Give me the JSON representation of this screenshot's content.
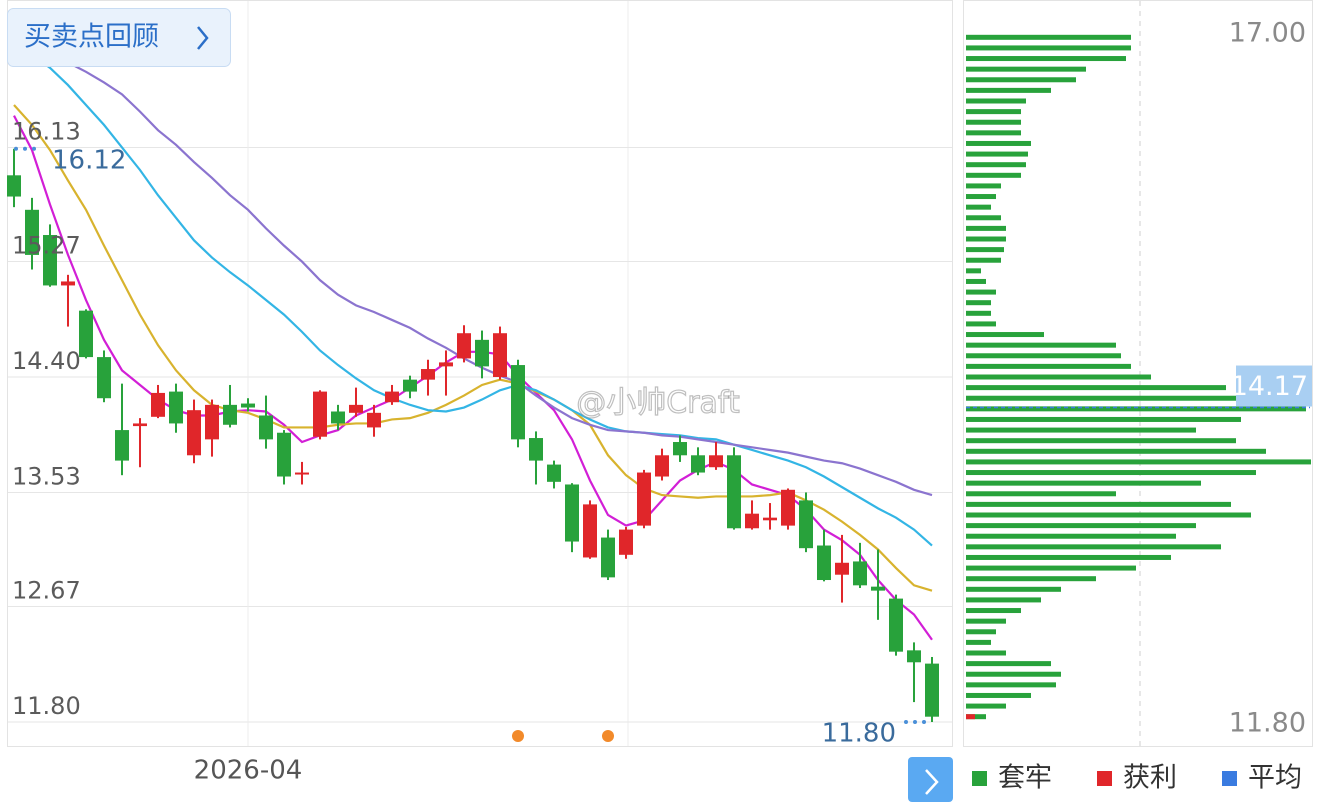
{
  "ui": {
    "button": "买卖点回顾",
    "watermark": "@小帅Craft"
  },
  "chart_data": [
    {
      "type": "candlestick",
      "categories": [
        null,
        null,
        null,
        null,
        null,
        null,
        null,
        null,
        null,
        null,
        null,
        null,
        null,
        "2026-04",
        null,
        null,
        null,
        null,
        null,
        null,
        null,
        null,
        null,
        null,
        null,
        null,
        null,
        null,
        null,
        null,
        null,
        null,
        null,
        null,
        null,
        null,
        null,
        null,
        null,
        null,
        null,
        null,
        null,
        null,
        null,
        null,
        null,
        null,
        null,
        null,
        null,
        null
      ],
      "open": [
        15.92,
        15.66,
        15.47,
        15.09,
        14.9,
        14.55,
        14,
        14.03,
        14.1,
        14.29,
        13.81,
        13.93,
        14.19,
        14.2,
        14.11,
        13.98,
        13.67,
        13.95,
        14.14,
        14.13,
        14.02,
        14.21,
        14.38,
        14.38,
        14.48,
        14.54,
        14.68,
        14.4,
        14.49,
        13.94,
        13.74,
        13.59,
        13.04,
        13.19,
        13.06,
        13.28,
        13.65,
        13.91,
        13.81,
        13.72,
        13.81,
        13.26,
        13.32,
        13.28,
        13.47,
        13.13,
        12.91,
        13.01,
        12.82,
        12.73,
        12.34,
        12.24
      ],
      "high": [
        16.12,
        15.75,
        15.55,
        15.17,
        14.91,
        14.6,
        14.35,
        14.09,
        14.34,
        14.35,
        14.23,
        14.23,
        14.34,
        14.24,
        14.26,
        14,
        13.76,
        14.3,
        14.19,
        14.32,
        14.19,
        14.34,
        14.41,
        14.53,
        14.6,
        14.79,
        14.75,
        14.78,
        14.53,
        13.99,
        13.77,
        13.6,
        13.47,
        13.25,
        13.27,
        13.7,
        13.86,
        13.96,
        13.87,
        13.91,
        13.87,
        13.47,
        13.45,
        13.56,
        13.53,
        13.25,
        13.21,
        13.15,
        13.1,
        12.76,
        12.4,
        12.29
      ],
      "low": [
        15.68,
        15.21,
        15.08,
        14.78,
        14.54,
        14.21,
        13.66,
        13.72,
        14.09,
        13.98,
        13.75,
        13.8,
        14.02,
        14.14,
        13.86,
        13.59,
        13.59,
        13.93,
        14,
        14.1,
        13.95,
        14.19,
        14.24,
        14.26,
        14.26,
        14.51,
        14.39,
        14.38,
        13.87,
        13.59,
        13.56,
        13.08,
        13.03,
        12.87,
        13.03,
        13.26,
        13.62,
        13.76,
        13.66,
        13.7,
        13.25,
        13.25,
        13.25,
        13.25,
        13.08,
        12.86,
        12.7,
        12.81,
        12.57,
        12.3,
        11.95,
        11.8
      ],
      "close": [
        15.76,
        15.32,
        15.09,
        15.12,
        14.55,
        14.24,
        13.77,
        14.05,
        14.28,
        14.05,
        14.15,
        14.19,
        14.04,
        14.17,
        13.93,
        13.65,
        13.68,
        14.29,
        14.05,
        14.19,
        14.13,
        14.29,
        14.29,
        14.46,
        14.51,
        14.73,
        14.48,
        14.73,
        13.93,
        13.77,
        13.61,
        13.16,
        13.44,
        12.89,
        13.25,
        13.68,
        13.81,
        13.81,
        13.68,
        13.81,
        13.26,
        13.37,
        13.34,
        13.55,
        13.11,
        12.87,
        13,
        12.83,
        12.79,
        12.33,
        12.25,
        11.84
      ],
      "up_color": "#e0262a",
      "down_color": "#28a23b",
      "lines": [
        {
          "color": "#d21fd6",
          "values": [
            16.37,
            16.11,
            15.7,
            15.32,
            14.98,
            14.68,
            14.45,
            14.34,
            14.23,
            14.15,
            14.11,
            14.11,
            14.14,
            14.15,
            14.14,
            14.04,
            13.91,
            13.96,
            14,
            14.11,
            14.17,
            14.23,
            14.32,
            14.41,
            14.51,
            14.59,
            14.59,
            14.57,
            14.41,
            14.28,
            14.15,
            13.93,
            13.62,
            13.36,
            13.28,
            13.32,
            13.47,
            13.62,
            13.7,
            13.76,
            13.7,
            13.59,
            13.55,
            13.51,
            13.4,
            13.25,
            13.17,
            13.06,
            12.87,
            12.72,
            12.61,
            12.42
          ]
        },
        {
          "color": "#d8b32e",
          "values": [
            16.45,
            16.3,
            16.11,
            15.88,
            15.66,
            15.39,
            15.13,
            14.87,
            14.64,
            14.45,
            14.3,
            14.19,
            14.15,
            14.13,
            14.08,
            14.02,
            14.02,
            14.02,
            14.04,
            14.05,
            14.05,
            14.08,
            14.09,
            14.13,
            14.19,
            14.26,
            14.34,
            14.38,
            14.35,
            14.29,
            14.23,
            14.15,
            14.04,
            13.81,
            13.66,
            13.56,
            13.51,
            13.5,
            13.49,
            13.5,
            13.5,
            13.5,
            13.51,
            13.53,
            13.47,
            13.4,
            13.31,
            13.21,
            13.1,
            12.96,
            12.83,
            12.79
          ]
        },
        {
          "color": "#33b5e5",
          "values": [
            16.9,
            16.83,
            16.73,
            16.6,
            16.45,
            16.3,
            16.13,
            15.96,
            15.77,
            15.6,
            15.43,
            15.3,
            15.19,
            15.09,
            14.98,
            14.87,
            14.74,
            14.6,
            14.49,
            14.39,
            14.3,
            14.24,
            14.19,
            14.15,
            14.14,
            14.17,
            14.23,
            14.3,
            14.34,
            14.3,
            14.23,
            14.15,
            14.08,
            14.02,
            13.99,
            13.98,
            13.97,
            13.96,
            13.94,
            13.93,
            13.89,
            13.85,
            13.81,
            13.77,
            13.72,
            13.65,
            13.57,
            13.49,
            13.41,
            13.34,
            13.25,
            13.13
          ]
        },
        {
          "color": "#8b74cf",
          "values": [
            16.95,
            16.9,
            16.85,
            16.77,
            16.7,
            16.62,
            16.53,
            16.4,
            16.26,
            16.15,
            16.02,
            15.9,
            15.77,
            15.66,
            15.52,
            15.39,
            15.27,
            15.13,
            15.02,
            14.94,
            14.89,
            14.83,
            14.77,
            14.69,
            14.62,
            14.54,
            14.47,
            14.41,
            14.36,
            14.26,
            14.17,
            14.09,
            14.04,
            14,
            13.99,
            13.98,
            13.96,
            13.95,
            13.93,
            13.91,
            13.89,
            13.87,
            13.85,
            13.83,
            13.8,
            13.77,
            13.75,
            13.71,
            13.66,
            13.61,
            13.55,
            13.51
          ]
        }
      ],
      "annotations": {
        "high": "16.12",
        "low": "11.80"
      },
      "ylim": [
        11.8,
        17
      ],
      "yticks": [
        16.13,
        15.27,
        {
          "value": 14.4,
          "label": "14.40"
        },
        13.53,
        12.67,
        {
          "value": 11.8,
          "label": "11.80"
        }
      ],
      "grid": true
    },
    {
      "type": "bar",
      "orientation": "horizontal",
      "series": [
        {
          "name": "套牢",
          "color": "#28a23b",
          "y": [
            16.96,
            16.88,
            16.8,
            16.72,
            16.64,
            16.56,
            16.48,
            16.4,
            16.32,
            16.24,
            16.16,
            16.08,
            16,
            15.92,
            15.84,
            15.76,
            15.68,
            15.6,
            15.52,
            15.44,
            15.36,
            15.28,
            15.2,
            15.12,
            15.04,
            14.96,
            14.88,
            14.8,
            14.72,
            14.64,
            14.56,
            14.48,
            14.4,
            14.32,
            14.24,
            14.16,
            14.08,
            14,
            13.92,
            13.84,
            13.76,
            13.68,
            13.6,
            13.52,
            13.44,
            13.36,
            13.28,
            13.2,
            13.12,
            13.04,
            12.96,
            12.88,
            12.8,
            12.72,
            12.64,
            12.56,
            12.48,
            12.4,
            12.32,
            12.24,
            12.16,
            12.08,
            12,
            11.92,
            11.84
          ],
          "values": [
            165,
            165,
            160,
            120,
            110,
            85,
            60,
            55,
            55,
            55,
            65,
            62,
            60,
            55,
            35,
            30,
            25,
            35,
            40,
            40,
            38,
            35,
            15,
            20,
            30,
            25,
            25,
            30,
            78,
            150,
            155,
            165,
            185,
            260,
            335,
            340,
            275,
            230,
            270,
            300,
            345,
            290,
            235,
            150,
            265,
            285,
            230,
            210,
            255,
            205,
            170,
            130,
            95,
            75,
            55,
            40,
            30,
            25,
            40,
            85,
            95,
            90,
            65,
            40,
            20
          ]
        },
        {
          "name": "获利",
          "color": "#e0262a",
          "y": [
            11.84
          ],
          "values": [
            9
          ]
        }
      ],
      "average": {
        "name": "平均",
        "color": "#3a7be0",
        "value": 14.17
      },
      "xlim": [
        0,
        350
      ],
      "ylim": [
        11.8,
        17
      ],
      "yticks": [
        {
          "value": 17,
          "label": "17.00"
        },
        {
          "value": 11.8,
          "label": "11.80"
        }
      ],
      "grid": false,
      "legend": "bottom"
    }
  ]
}
